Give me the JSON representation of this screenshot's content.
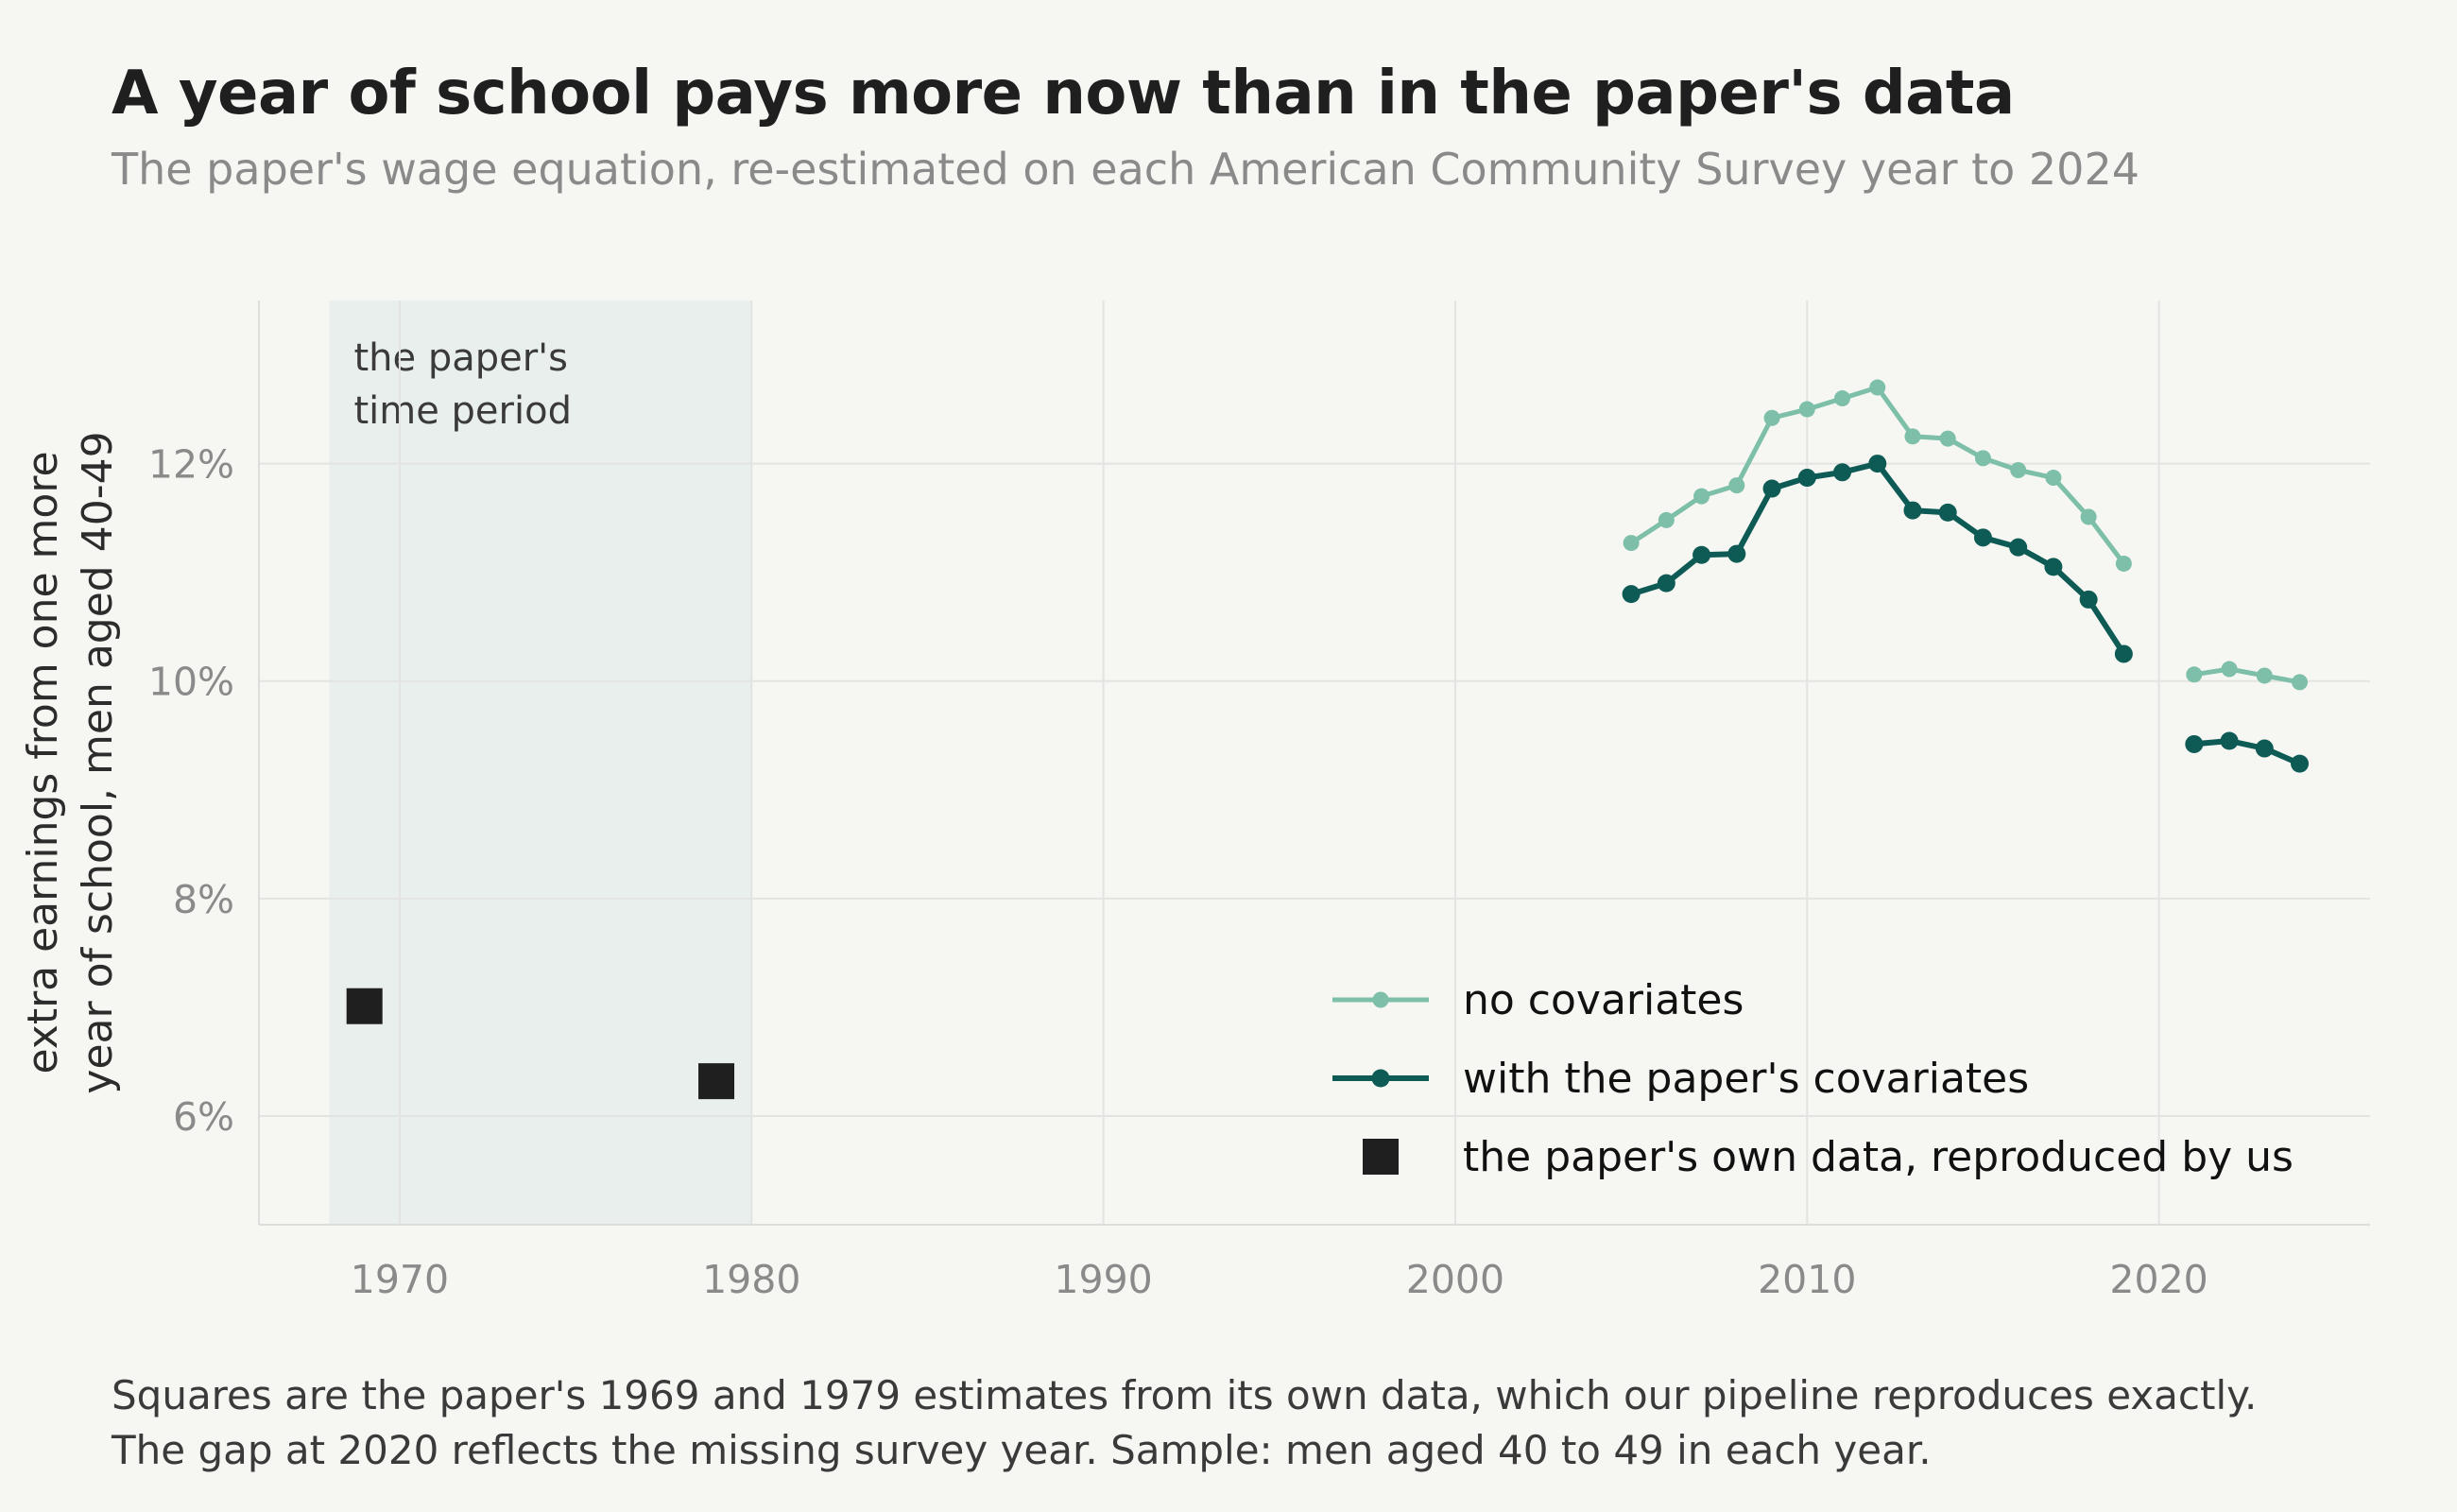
{
  "title": "A year of school pays more now than in the paper's data",
  "subtitle": "The paper's wage equation, re-estimated on each American Community Survey year to 2024",
  "footnote": {
    "line1": "Squares are the paper's 1969 and 1979 estimates from its own data, which our pipeline reproduces exactly.",
    "line2": "The gap at 2020 reflects the missing survey year. Sample: men aged 40 to 49 in each year."
  },
  "chart_data": {
    "type": "line",
    "ylabel_lines": [
      "extra earnings from one more",
      "year of school, men aged 40-49"
    ],
    "xlabel": "",
    "xlim": [
      1966,
      2026
    ],
    "ylim": [
      5.0,
      13.5
    ],
    "x_ticks": [
      1970,
      1980,
      1990,
      2000,
      2010,
      2020
    ],
    "y_ticks": [
      6,
      8,
      10,
      12
    ],
    "y_tick_suffix": "%",
    "grid": true,
    "legend_position": "bottom-right",
    "shaded_region": {
      "x_range": [
        1968,
        1980
      ],
      "label_lines": [
        "the paper's",
        "time period"
      ]
    },
    "series": [
      {
        "name": "no covariates",
        "kind": "line",
        "color": "#7dbfa8",
        "points": [
          [
            [
              2005,
              11.27
            ],
            [
              2006,
              11.48
            ],
            [
              2007,
              11.7
            ],
            [
              2008,
              11.8
            ],
            [
              2009,
              12.42
            ],
            [
              2010,
              12.5
            ],
            [
              2011,
              12.6
            ],
            [
              2012,
              12.7
            ],
            [
              2013,
              12.25
            ],
            [
              2014,
              12.23
            ],
            [
              2015,
              12.05
            ],
            [
              2016,
              11.94
            ],
            [
              2017,
              11.87
            ],
            [
              2018,
              11.51
            ],
            [
              2019,
              11.08
            ]
          ],
          [
            [
              2021,
              10.06
            ],
            [
              2022,
              10.11
            ],
            [
              2023,
              10.05
            ],
            [
              2024,
              9.99
            ]
          ]
        ]
      },
      {
        "name": "with the paper's covariates",
        "kind": "line",
        "color": "#0e5a55",
        "points": [
          [
            [
              2005,
              10.8
            ],
            [
              2006,
              10.9
            ],
            [
              2007,
              11.16
            ],
            [
              2008,
              11.17
            ],
            [
              2009,
              11.77
            ],
            [
              2010,
              11.87
            ],
            [
              2011,
              11.92
            ],
            [
              2012,
              12.0
            ],
            [
              2013,
              11.57
            ],
            [
              2014,
              11.55
            ],
            [
              2015,
              11.32
            ],
            [
              2016,
              11.23
            ],
            [
              2017,
              11.05
            ],
            [
              2018,
              10.75
            ],
            [
              2019,
              10.25
            ]
          ],
          [
            [
              2021,
              9.42
            ],
            [
              2022,
              9.45
            ],
            [
              2023,
              9.38
            ],
            [
              2024,
              9.24
            ]
          ]
        ]
      },
      {
        "name": "the paper's own data, reproduced by us",
        "kind": "square",
        "color": "#1f1f1f",
        "points": [
          [
            [
              1969,
              7.01
            ],
            [
              1979,
              6.32
            ]
          ]
        ]
      }
    ]
  }
}
